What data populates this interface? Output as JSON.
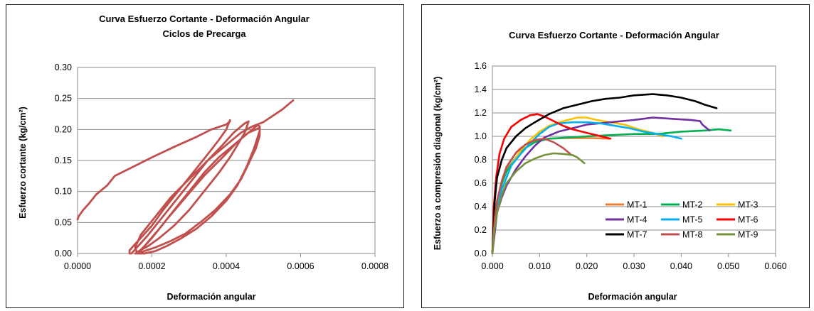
{
  "chart_data": [
    {
      "type": "line",
      "title": "Curva Esfuerzo Cortante - Deformación Angular",
      "subtitle": "Ciclos de Precarga",
      "xlabel": "Deformación angular",
      "ylabel": "Esfuerzo cortante  (kg/cm²)",
      "xlim": [
        0,
        0.0008
      ],
      "ylim": [
        0,
        0.3
      ],
      "xticks": [
        "0.0000",
        "0.0002",
        "0.0004",
        "0.0006",
        "0.0008"
      ],
      "yticks": [
        "0.00",
        "0.05",
        "0.10",
        "0.15",
        "0.20",
        "0.25",
        "0.30"
      ],
      "grid": "horizontal",
      "series": [
        {
          "color": "#c0504d",
          "x": [
            0.0,
            3e-06,
            1.5e-05,
            3e-05,
            5e-05,
            8e-05,
            0.0001,
            0.00015,
            0.0002,
            0.00026,
            0.00032,
            0.00036,
            0.0004,
            0.00041,
            0.00041,
            0.0004,
            0.00038,
            0.00035,
            0.00031,
            0.00027,
            0.00023,
            0.0002,
            0.00017,
            0.00015,
            0.00014,
            0.00014,
            0.000145,
            0.00016,
            0.00019,
            0.00023,
            0.00027,
            0.00031,
            0.00035,
            0.00039,
            0.00042,
            0.00044,
            0.00045,
            0.00046,
            0.00045,
            0.00043,
            0.00041,
            0.00038,
            0.00034,
            0.0003,
            0.00026,
            0.00022,
            0.00019,
            0.000165,
            0.000155,
            0.00016,
            0.00018,
            0.00022,
            0.00026,
            0.0003,
            0.00034,
            0.00038,
            0.00042,
            0.00045,
            0.00047,
            0.00048,
            0.000485,
            0.00049,
            0.00049,
            0.00048,
            0.00046,
            0.00044,
            0.00041,
            0.00037,
            0.00033,
            0.00029,
            0.00025,
            0.00021,
            0.00018,
            0.00016,
            0.00016,
            0.00017,
            0.0002,
            0.00024,
            0.00029,
            0.00034,
            0.00039,
            0.00043,
            0.00046,
            0.00048,
            0.00049,
            0.00049,
            0.000475,
            0.000455,
            0.00043,
            0.0004,
            0.00036,
            0.00032,
            0.00028,
            0.00024,
            0.00021,
            0.00018,
            0.00016,
            0.000155,
            0.00017,
            0.00021,
            0.00025,
            0.0003,
            0.00035,
            0.0004,
            0.00044,
            0.00047,
            0.0005,
            0.00052,
            0.00055,
            0.00058
          ],
          "y": [
            0.055,
            0.06,
            0.07,
            0.08,
            0.095,
            0.11,
            0.125,
            0.14,
            0.155,
            0.172,
            0.188,
            0.2,
            0.208,
            0.213,
            0.215,
            0.2,
            0.183,
            0.16,
            0.13,
            0.1,
            0.07,
            0.045,
            0.025,
            0.012,
            0.005,
            0.0,
            0.0,
            0.01,
            0.03,
            0.06,
            0.09,
            0.12,
            0.15,
            0.175,
            0.195,
            0.205,
            0.21,
            0.213,
            0.195,
            0.175,
            0.155,
            0.13,
            0.1,
            0.07,
            0.045,
            0.025,
            0.012,
            0.004,
            0.0,
            0.0,
            0.012,
            0.04,
            0.07,
            0.1,
            0.13,
            0.155,
            0.175,
            0.19,
            0.2,
            0.205,
            0.207,
            0.205,
            0.19,
            0.17,
            0.145,
            0.12,
            0.095,
            0.07,
            0.05,
            0.032,
            0.02,
            0.01,
            0.004,
            0.0,
            0.0,
            0.005,
            0.025,
            0.055,
            0.09,
            0.125,
            0.155,
            0.18,
            0.195,
            0.2,
            0.203,
            0.198,
            0.17,
            0.14,
            0.11,
            0.085,
            0.06,
            0.04,
            0.025,
            0.012,
            0.004,
            0.0,
            0.0,
            0.01,
            0.03,
            0.06,
            0.09,
            0.12,
            0.15,
            0.175,
            0.195,
            0.205,
            0.212,
            0.22,
            0.232,
            0.247
          ]
        }
      ]
    },
    {
      "type": "line",
      "title": "Curva Esfuerzo Cortante - Deformación Angular",
      "xlabel": "Deformación angular",
      "ylabel": "Esfuerzo a compresión diagonal  (kg/cm²)",
      "xlim": [
        0,
        0.06
      ],
      "ylim": [
        0,
        1.6
      ],
      "xticks": [
        "0.000",
        "0.010",
        "0.020",
        "0.030",
        "0.040",
        "0.050",
        "0.060"
      ],
      "yticks": [
        "0.0",
        "0.2",
        "0.4",
        "0.6",
        "0.8",
        "1.0",
        "1.2",
        "1.4",
        "1.6"
      ],
      "grid": "horizontal",
      "legend": "bottom-right",
      "series": [
        {
          "name": "MT-1",
          "color": "#ed7d31",
          "x": [
            0,
            0.0005,
            0.001,
            0.002,
            0.003,
            0.004,
            0.005,
            0.006,
            0.008,
            0.01,
            0.012,
            0.015,
            0.018,
            0.021,
            0.025
          ],
          "y": [
            0,
            0.3,
            0.45,
            0.62,
            0.72,
            0.8,
            0.86,
            0.9,
            0.95,
            0.97,
            0.98,
            0.985,
            0.985,
            0.985,
            0.98
          ]
        },
        {
          "name": "MT-2",
          "color": "#00b050",
          "x": [
            0,
            0.0005,
            0.001,
            0.002,
            0.003,
            0.005,
            0.007,
            0.009,
            0.012,
            0.016,
            0.02,
            0.025,
            0.03,
            0.035,
            0.04,
            0.045,
            0.048,
            0.0505
          ],
          "y": [
            0,
            0.28,
            0.42,
            0.6,
            0.7,
            0.82,
            0.9,
            0.95,
            0.98,
            0.99,
            1.0,
            1.01,
            1.02,
            1.02,
            1.04,
            1.05,
            1.06,
            1.05
          ]
        },
        {
          "name": "MT-3",
          "color": "#ffc000",
          "x": [
            0,
            0.0005,
            0.001,
            0.002,
            0.004,
            0.006,
            0.008,
            0.01,
            0.012,
            0.015,
            0.018,
            0.02,
            0.022,
            0.025,
            0.028,
            0.031,
            0.034,
            0.036
          ],
          "y": [
            0,
            0.28,
            0.4,
            0.55,
            0.75,
            0.88,
            0.97,
            1.04,
            1.09,
            1.13,
            1.16,
            1.16,
            1.14,
            1.12,
            1.1,
            1.06,
            1.03,
            1.0
          ]
        },
        {
          "name": "MT-4",
          "color": "#7030a0",
          "x": [
            0,
            0.001,
            0.002,
            0.003,
            0.005,
            0.007,
            0.009,
            0.011,
            0.014,
            0.017,
            0.02,
            0.025,
            0.03,
            0.034,
            0.038,
            0.042,
            0.044,
            0.0445,
            0.046
          ],
          "y": [
            0,
            0.35,
            0.48,
            0.58,
            0.72,
            0.83,
            0.92,
            0.99,
            1.04,
            1.07,
            1.1,
            1.12,
            1.14,
            1.16,
            1.15,
            1.14,
            1.13,
            1.1,
            1.05
          ]
        },
        {
          "name": "MT-5",
          "color": "#00b0f0",
          "x": [
            0,
            0.0005,
            0.001,
            0.002,
            0.004,
            0.006,
            0.008,
            0.01,
            0.012,
            0.014,
            0.017,
            0.02,
            0.023,
            0.026,
            0.029,
            0.032,
            0.035,
            0.038,
            0.04
          ],
          "y": [
            0,
            0.25,
            0.38,
            0.55,
            0.75,
            0.85,
            0.94,
            1.02,
            1.08,
            1.11,
            1.12,
            1.12,
            1.11,
            1.09,
            1.07,
            1.04,
            1.02,
            1.0,
            0.98
          ]
        },
        {
          "name": "MT-6",
          "color": "#ff0000",
          "x": [
            0,
            0.0003,
            0.0008,
            0.0015,
            0.0025,
            0.004,
            0.006,
            0.008,
            0.0095,
            0.011,
            0.013,
            0.015,
            0.017,
            0.02,
            0.023,
            0.025
          ],
          "y": [
            0,
            0.4,
            0.65,
            0.85,
            0.98,
            1.08,
            1.14,
            1.18,
            1.19,
            1.17,
            1.13,
            1.09,
            1.06,
            1.03,
            1.0,
            0.98
          ]
        },
        {
          "name": "MT-7",
          "color": "#000000",
          "x": [
            0,
            0.0005,
            0.001,
            0.002,
            0.003,
            0.005,
            0.007,
            0.009,
            0.012,
            0.015,
            0.018,
            0.021,
            0.024,
            0.027,
            0.03,
            0.034,
            0.037,
            0.04,
            0.043,
            0.045,
            0.0475
          ],
          "y": [
            0,
            0.45,
            0.65,
            0.8,
            0.9,
            1.0,
            1.07,
            1.12,
            1.19,
            1.24,
            1.27,
            1.3,
            1.32,
            1.33,
            1.35,
            1.36,
            1.35,
            1.33,
            1.3,
            1.27,
            1.24
          ]
        },
        {
          "name": "MT-8",
          "color": "#c0504d",
          "x": [
            0,
            0.0005,
            0.001,
            0.002,
            0.003,
            0.005,
            0.007,
            0.009,
            0.011,
            0.013,
            0.015,
            0.0165
          ],
          "y": [
            0,
            0.3,
            0.45,
            0.62,
            0.74,
            0.86,
            0.93,
            0.97,
            0.98,
            0.95,
            0.9,
            0.85
          ]
        },
        {
          "name": "MT-9",
          "color": "#76923c",
          "x": [
            0,
            0.0005,
            0.001,
            0.002,
            0.003,
            0.005,
            0.007,
            0.009,
            0.011,
            0.013,
            0.015,
            0.017,
            0.018,
            0.0195
          ],
          "y": [
            0,
            0.22,
            0.35,
            0.5,
            0.6,
            0.7,
            0.77,
            0.81,
            0.84,
            0.855,
            0.85,
            0.84,
            0.82,
            0.77
          ]
        }
      ]
    }
  ]
}
